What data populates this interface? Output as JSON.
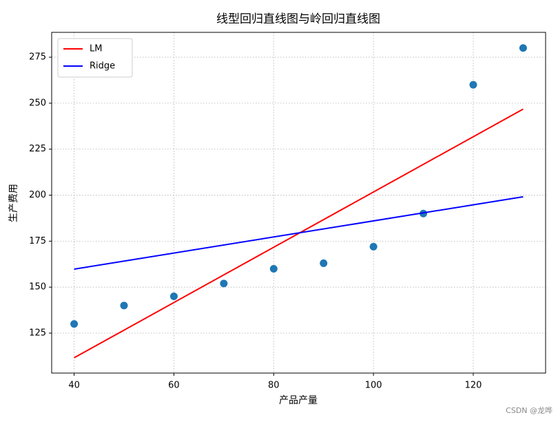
{
  "chart_data": {
    "type": "scatter",
    "title": "线型回归直线图与岭回归直线图",
    "xlabel": "产品产量",
    "ylabel": "生产费用",
    "x": [
      40,
      50,
      60,
      70,
      80,
      90,
      100,
      110,
      120,
      130
    ],
    "values": [
      130,
      140,
      145,
      152,
      160,
      163,
      172,
      190,
      260,
      280
    ],
    "color": "#1f77b4",
    "series": [
      {
        "name": "LM",
        "color": "#ff0000",
        "x": [
          40,
          130
        ],
        "values": [
          111.6,
          246.8
        ]
      },
      {
        "name": "Ridge",
        "color": "#0000ff",
        "x": [
          40,
          130
        ],
        "values": [
          159.8,
          199.1
        ]
      }
    ],
    "xlim": [
      35.5,
      134.5
    ],
    "ylim": [
      103.3,
      288.5
    ],
    "xticks": [
      40,
      60,
      80,
      100,
      120
    ],
    "yticks": [
      125,
      150,
      175,
      200,
      225,
      250,
      275
    ],
    "grid": true,
    "legend": "upper-left"
  },
  "watermark": "CSDN @龙哗"
}
